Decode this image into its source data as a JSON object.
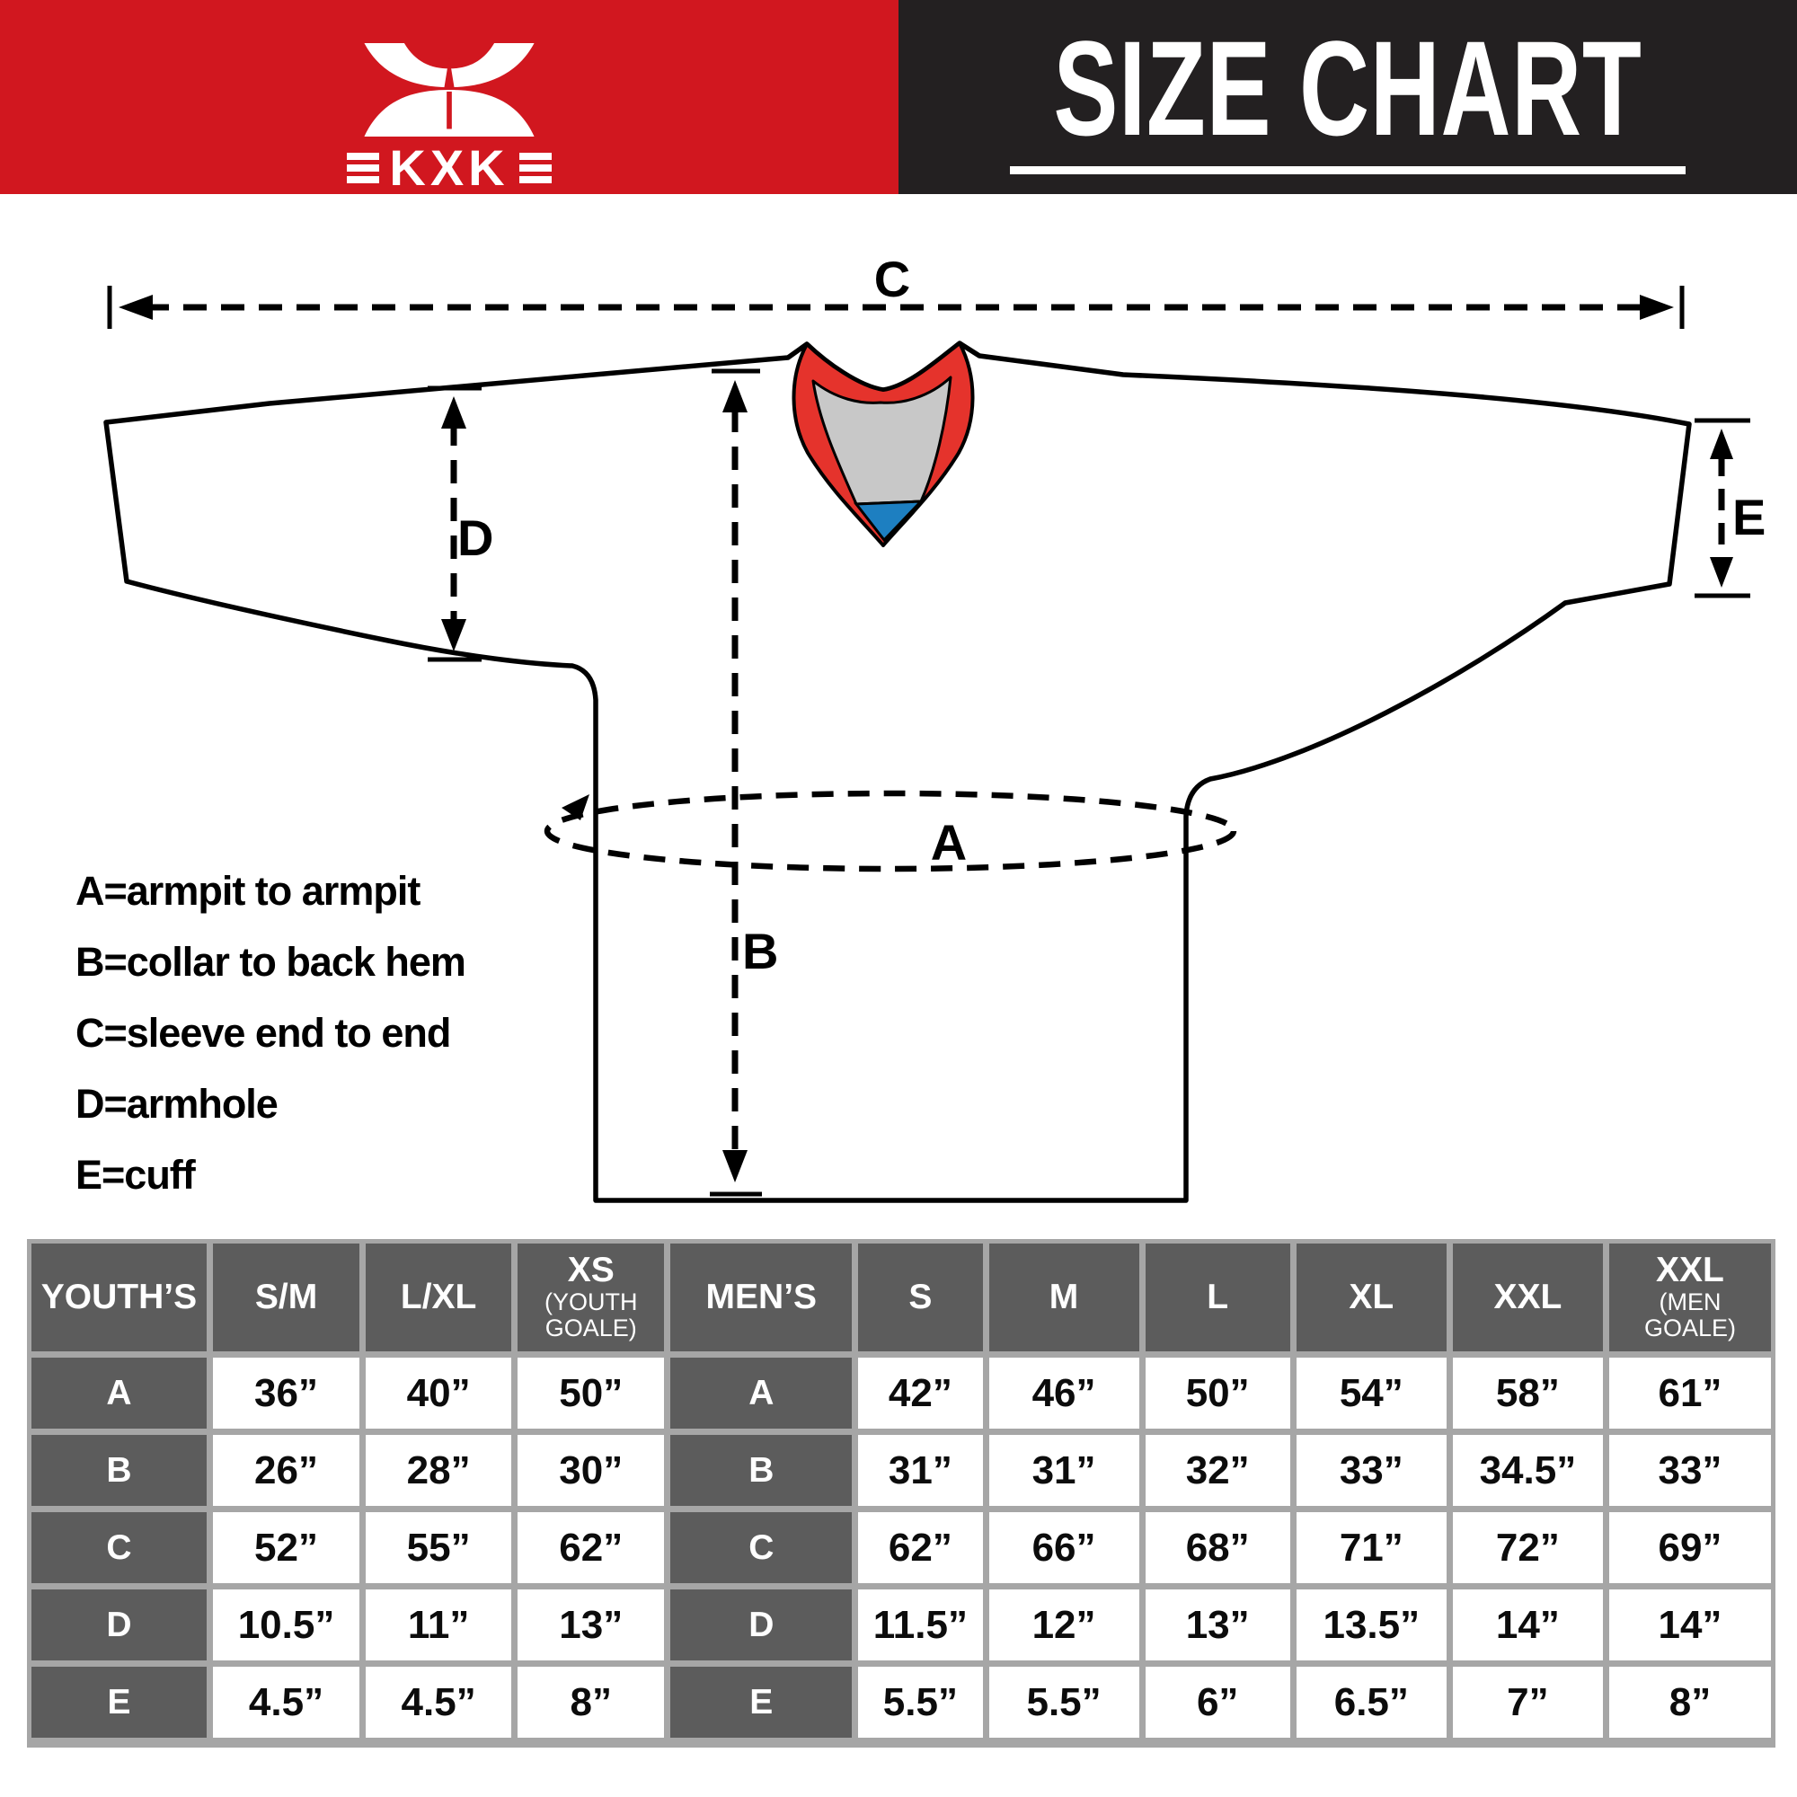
{
  "header": {
    "brand_letters": "KXK",
    "title": "SIZE CHART",
    "red": "#d1171f",
    "black": "#232021"
  },
  "diagram": {
    "labels": {
      "A": "A",
      "B": "B",
      "C": "C",
      "D": "D",
      "E": "E"
    },
    "collar_red": "#e5332c",
    "collar_gray": "#c8c8c8",
    "collar_blue": "#1d7fc1"
  },
  "legend": {
    "lines": [
      "A=armpit to armpit",
      "B=collar to back hem",
      "C=sleeve end to end",
      "D=armhole",
      "E=cuff"
    ]
  },
  "size_table": {
    "header": [
      {
        "main": "YOUTH’S",
        "sub": ""
      },
      {
        "main": "S/M",
        "sub": ""
      },
      {
        "main": "L/XL",
        "sub": ""
      },
      {
        "main": "XS",
        "sub": "(YOUTH GOALE)"
      },
      {
        "main": "MEN’S",
        "sub": ""
      },
      {
        "main": "S",
        "sub": ""
      },
      {
        "main": "M",
        "sub": ""
      },
      {
        "main": "L",
        "sub": ""
      },
      {
        "main": "XL",
        "sub": ""
      },
      {
        "main": "XXL",
        "sub": ""
      },
      {
        "main": "XXL",
        "sub": "(MEN GOALE)"
      }
    ],
    "rows": [
      {
        "cells": [
          "A",
          "36”",
          "40”",
          "50”",
          "A",
          "42”",
          "46”",
          "50”",
          "54”",
          "58”",
          "61”"
        ]
      },
      {
        "cells": [
          "B",
          "26”",
          "28”",
          "30”",
          "B",
          "31”",
          "31”",
          "32”",
          "33”",
          "34.5”",
          "33”"
        ]
      },
      {
        "cells": [
          "C",
          "52”",
          "55”",
          "62”",
          "C",
          "62”",
          "66”",
          "68”",
          "71”",
          "72”",
          "69”"
        ]
      },
      {
        "cells": [
          "D",
          "10.5”",
          "11”",
          "13”",
          "D",
          "11.5”",
          "12”",
          "13”",
          "13.5”",
          "14”",
          "14”"
        ]
      },
      {
        "cells": [
          "E",
          "4.5”",
          "4.5”",
          "8”",
          "E",
          "5.5”",
          "5.5”",
          "6”",
          "6.5”",
          "7”",
          "8”"
        ]
      }
    ],
    "label_column_indexes": [
      0,
      4
    ]
  }
}
